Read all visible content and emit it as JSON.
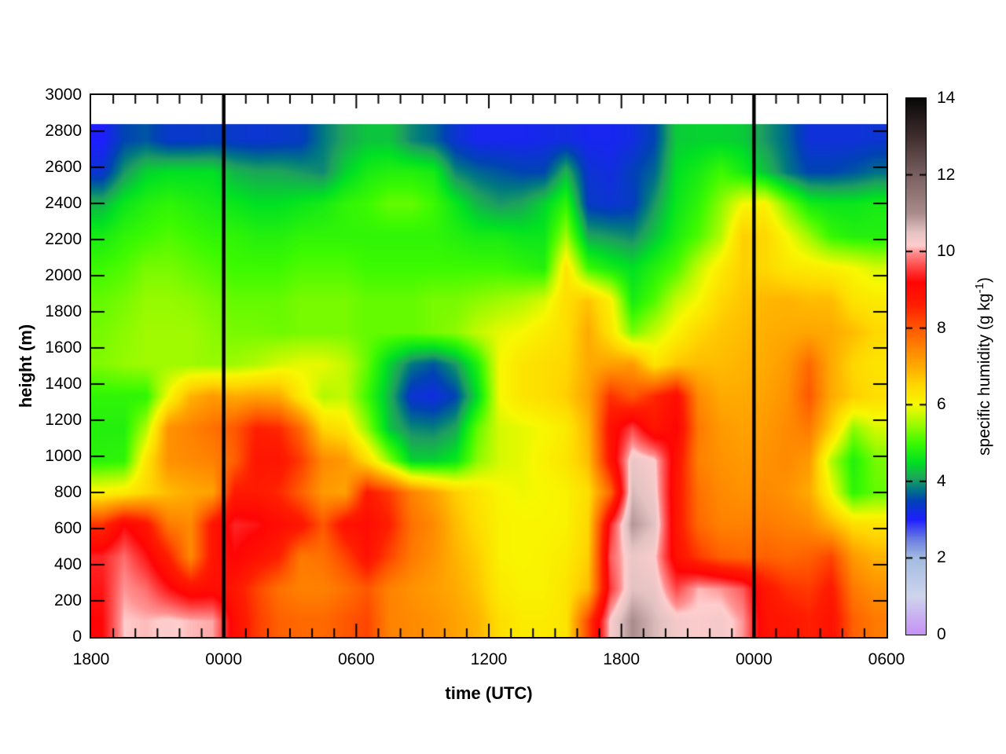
{
  "figure": {
    "background": "#ffffff",
    "border_color": "#000000",
    "vline_color": "#000000"
  },
  "chart_data": {
    "type": "heatmap",
    "title": "",
    "xlabel": "time (UTC)",
    "ylabel": "height (m)",
    "colorbar_label_prefix": "specific humidity (g kg",
    "colorbar_label_sup": "-1",
    "colorbar_label_suffix": ")",
    "x_range_hours": [
      0,
      36
    ],
    "x_major_ticks": [
      {
        "h": 0,
        "label": "1800"
      },
      {
        "h": 6,
        "label": "0000"
      },
      {
        "h": 12,
        "label": "0600"
      },
      {
        "h": 18,
        "label": "1200"
      },
      {
        "h": 24,
        "label": "1800"
      },
      {
        "h": 30,
        "label": "0000"
      },
      {
        "h": 36,
        "label": "0600"
      }
    ],
    "x_minor_tick_every_hours": 1,
    "ylim": [
      0,
      3000
    ],
    "y_ticks": [
      0,
      200,
      400,
      600,
      800,
      1000,
      1200,
      1400,
      1600,
      1800,
      2000,
      2200,
      2400,
      2600,
      2800,
      3000
    ],
    "vlines_hours": [
      6,
      30
    ],
    "data_height_range_m": [
      0,
      2840
    ],
    "grid_rows_order": "top-to-bottom (2840m down to 0m), 16 rows x 36 hourly columns",
    "grid": [
      [
        3.0,
        3.5,
        3.6,
        3.35,
        3.35,
        3.4,
        3.35,
        3.3,
        3.35,
        3.4,
        3.8,
        4.1,
        4.3,
        4.3,
        3.9,
        3.7,
        3.3,
        3.1,
        3.1,
        3.1,
        3.15,
        3.2,
        3.1,
        3.1,
        3.2,
        3.5,
        4.35,
        4.4,
        4.4,
        4.35,
        4.0,
        3.7,
        3.25,
        3.25,
        3.25,
        3.3
      ],
      [
        3.3,
        4.0,
        4.4,
        4.5,
        4.5,
        4.5,
        4.2,
        4.1,
        4.1,
        4.0,
        3.9,
        4.4,
        4.7,
        4.8,
        4.8,
        4.7,
        3.9,
        3.7,
        3.6,
        3.5,
        3.5,
        4.2,
        3.3,
        3.2,
        3.45,
        3.7,
        4.5,
        4.7,
        5.0,
        4.7,
        4.3,
        3.8,
        3.5,
        3.5,
        3.6,
        3.75
      ],
      [
        4.2,
        4.6,
        4.8,
        4.9,
        4.8,
        4.7,
        4.6,
        4.5,
        4.5,
        4.6,
        4.7,
        4.9,
        5.0,
        5.2,
        5.2,
        5.0,
        4.6,
        4.2,
        4.0,
        4.1,
        4.4,
        4.9,
        3.4,
        3.3,
        3.4,
        4.0,
        4.6,
        4.9,
        5.4,
        6.0,
        6.1,
        5.3,
        4.7,
        4.6,
        4.6,
        4.7
      ],
      [
        4.7,
        4.9,
        5.0,
        5.1,
        5.0,
        4.9,
        4.9,
        4.8,
        4.8,
        4.9,
        4.9,
        4.9,
        4.9,
        4.9,
        4.9,
        4.9,
        4.8,
        4.7,
        4.7,
        4.6,
        4.6,
        5.5,
        4.1,
        4.0,
        3.9,
        4.3,
        4.75,
        5.1,
        5.6,
        6.6,
        6.5,
        6.0,
        5.5,
        4.95,
        4.8,
        4.8
      ],
      [
        5.0,
        5.1,
        5.3,
        5.3,
        5.2,
        5.1,
        5.0,
        5.0,
        5.0,
        5.1,
        5.1,
        5.1,
        5.0,
        5.0,
        5.0,
        5.0,
        5.0,
        5.0,
        5.0,
        4.9,
        4.8,
        6.3,
        5.0,
        4.7,
        4.5,
        4.8,
        5.1,
        5.7,
        6.2,
        6.6,
        6.5,
        6.25,
        6.2,
        6.1,
        6.0,
        5.8
      ],
      [
        5.2,
        5.3,
        5.45,
        5.45,
        5.4,
        5.3,
        5.2,
        5.2,
        5.2,
        5.3,
        5.3,
        5.3,
        5.2,
        5.2,
        5.2,
        5.3,
        5.3,
        5.4,
        5.5,
        5.6,
        5.8,
        6.4,
        6.7,
        6.1,
        4.7,
        5.1,
        5.7,
        6.0,
        6.5,
        6.7,
        6.85,
        6.9,
        6.8,
        6.8,
        6.3,
        6.2
      ],
      [
        5.3,
        5.4,
        5.5,
        5.5,
        5.5,
        5.4,
        5.3,
        5.3,
        5.25,
        5.3,
        5.3,
        5.3,
        5.2,
        5.2,
        5.2,
        5.3,
        5.4,
        5.7,
        5.9,
        6.0,
        6.2,
        6.4,
        7.0,
        6.3,
        5.3,
        5.7,
        6.1,
        6.5,
        6.7,
        6.8,
        6.95,
        7.0,
        7.05,
        7.0,
        6.8,
        6.5
      ],
      [
        5.35,
        5.45,
        5.5,
        5.5,
        5.5,
        5.45,
        5.5,
        5.6,
        5.8,
        5.9,
        5.9,
        5.7,
        5.2,
        4.4,
        3.8,
        3.6,
        4.0,
        4.8,
        6.0,
        6.3,
        6.4,
        6.5,
        7.0,
        7.1,
        7.2,
        6.3,
        6.7,
        6.8,
        6.8,
        6.9,
        7.0,
        7.2,
        7.8,
        7.0,
        6.5,
        6.3
      ],
      [
        4.9,
        4.9,
        4.9,
        6.0,
        6.9,
        7.2,
        7.0,
        7.1,
        7.0,
        6.2,
        5.6,
        5.7,
        5.0,
        4.2,
        3.3,
        3.2,
        3.5,
        4.5,
        6.0,
        6.3,
        6.4,
        6.6,
        7.1,
        8.4,
        8.0,
        8.5,
        9.0,
        7.4,
        7.0,
        7.0,
        7.1,
        7.3,
        8.0,
        7.0,
        6.6,
        6.4
      ],
      [
        4.8,
        4.8,
        5.6,
        7.3,
        7.5,
        7.7,
        8.0,
        8.6,
        8.5,
        7.8,
        6.5,
        6.3,
        5.4,
        4.3,
        3.9,
        3.85,
        4.1,
        5.2,
        5.8,
        5.9,
        6.0,
        6.2,
        6.9,
        8.9,
        9.6,
        8.8,
        9.2,
        7.6,
        7.2,
        7.1,
        7.2,
        7.4,
        7.6,
        6.6,
        5.4,
        5.8
      ],
      [
        4.85,
        4.9,
        6.3,
        7.3,
        7.4,
        7.5,
        7.9,
        8.8,
        8.8,
        8.3,
        7.4,
        7.2,
        6.4,
        5.4,
        4.4,
        4.4,
        4.6,
        5.4,
        5.8,
        5.9,
        6.1,
        6.3,
        6.8,
        8.8,
        10.4,
        10.2,
        8.9,
        7.5,
        7.3,
        7.2,
        7.3,
        7.4,
        7.2,
        5.6,
        4.8,
        5.3
      ],
      [
        6.1,
        6.2,
        6.5,
        6.8,
        7.0,
        7.1,
        8.7,
        8.7,
        8.5,
        7.9,
        7.2,
        7.1,
        8.7,
        8.3,
        7.5,
        7.1,
        6.6,
        6.3,
        6.05,
        5.95,
        6.0,
        6.1,
        6.4,
        7.8,
        10.6,
        10.3,
        8.8,
        7.7,
        7.4,
        7.3,
        7.4,
        7.3,
        7.0,
        6.0,
        4.9,
        5.2
      ],
      [
        8.4,
        9.2,
        8.8,
        7.6,
        7.4,
        8.8,
        9.4,
        9.3,
        9.0,
        8.8,
        8.0,
        8.9,
        9.0,
        8.6,
        7.7,
        7.4,
        6.8,
        6.4,
        6.1,
        6.05,
        6.05,
        6.1,
        6.5,
        9.4,
        10.9,
        10.5,
        8.8,
        7.8,
        7.5,
        7.5,
        7.6,
        7.5,
        7.4,
        6.9,
        6.4,
        6.3
      ],
      [
        9.4,
        9.8,
        9.3,
        8.6,
        7.4,
        8.8,
        9.2,
        8.9,
        8.6,
        7.6,
        7.7,
        8.2,
        8.9,
        8.2,
        7.6,
        7.3,
        6.9,
        6.6,
        6.1,
        6.05,
        6.1,
        6.2,
        6.6,
        9.7,
        10.4,
        10.2,
        8.9,
        8.3,
        7.9,
        7.8,
        7.9,
        7.8,
        7.9,
        8.2,
        7.2,
        6.9
      ],
      [
        9.3,
        10.0,
        9.8,
        9.3,
        8.9,
        9.0,
        8.8,
        8.2,
        7.7,
        7.5,
        7.5,
        7.7,
        8.0,
        7.5,
        7.3,
        7.15,
        7.0,
        6.7,
        6.2,
        6.1,
        6.1,
        6.3,
        6.8,
        9.5,
        10.5,
        10.4,
        9.6,
        10.1,
        10.0,
        9.7,
        8.8,
        8.4,
        8.3,
        8.7,
        7.6,
        7.3
      ],
      [
        9.2,
        10.15,
        10.1,
        10.2,
        10.1,
        10.05,
        9.0,
        8.3,
        7.9,
        7.8,
        7.8,
        8.0,
        8.2,
        7.5,
        7.4,
        7.3,
        7.1,
        6.9,
        6.4,
        6.2,
        6.2,
        6.3,
        8.2,
        10.2,
        11.0,
        10.6,
        10.3,
        10.2,
        10.3,
        10.0,
        8.9,
        8.8,
        8.6,
        8.9,
        7.9,
        7.6
      ]
    ],
    "colorbar": {
      "min": 0,
      "max": 14,
      "ticks": [
        0,
        2,
        4,
        6,
        8,
        10,
        12,
        14
      ]
    },
    "palette_stops": [
      [
        0,
        "#c692f5"
      ],
      [
        1,
        "#ced5ed"
      ],
      [
        2,
        "#a3bbe0"
      ],
      [
        2.5,
        "#697ae2"
      ],
      [
        3,
        "#1e1eff"
      ],
      [
        3.5,
        "#0044b4"
      ],
      [
        3.8,
        "#007882"
      ],
      [
        4.05,
        "#1ea05f"
      ],
      [
        4.5,
        "#00e123"
      ],
      [
        5,
        "#3cfa00"
      ],
      [
        5.5,
        "#a0fa00"
      ],
      [
        6,
        "#f8f800"
      ],
      [
        6.5,
        "#ffd800"
      ],
      [
        7,
        "#ffaa00"
      ],
      [
        7.5,
        "#ff8200"
      ],
      [
        8,
        "#ff5800"
      ],
      [
        8.6,
        "#ff1e00"
      ],
      [
        9.2,
        "#ff0505"
      ],
      [
        9.6,
        "#ff4646"
      ],
      [
        10,
        "#ff9494"
      ],
      [
        10.15,
        "#ffcdcd"
      ],
      [
        10.5,
        "#e4c3c3"
      ],
      [
        11,
        "#aa8c8c"
      ],
      [
        12,
        "#7a6060"
      ],
      [
        13,
        "#402e2e"
      ],
      [
        14,
        "#080808"
      ]
    ]
  }
}
